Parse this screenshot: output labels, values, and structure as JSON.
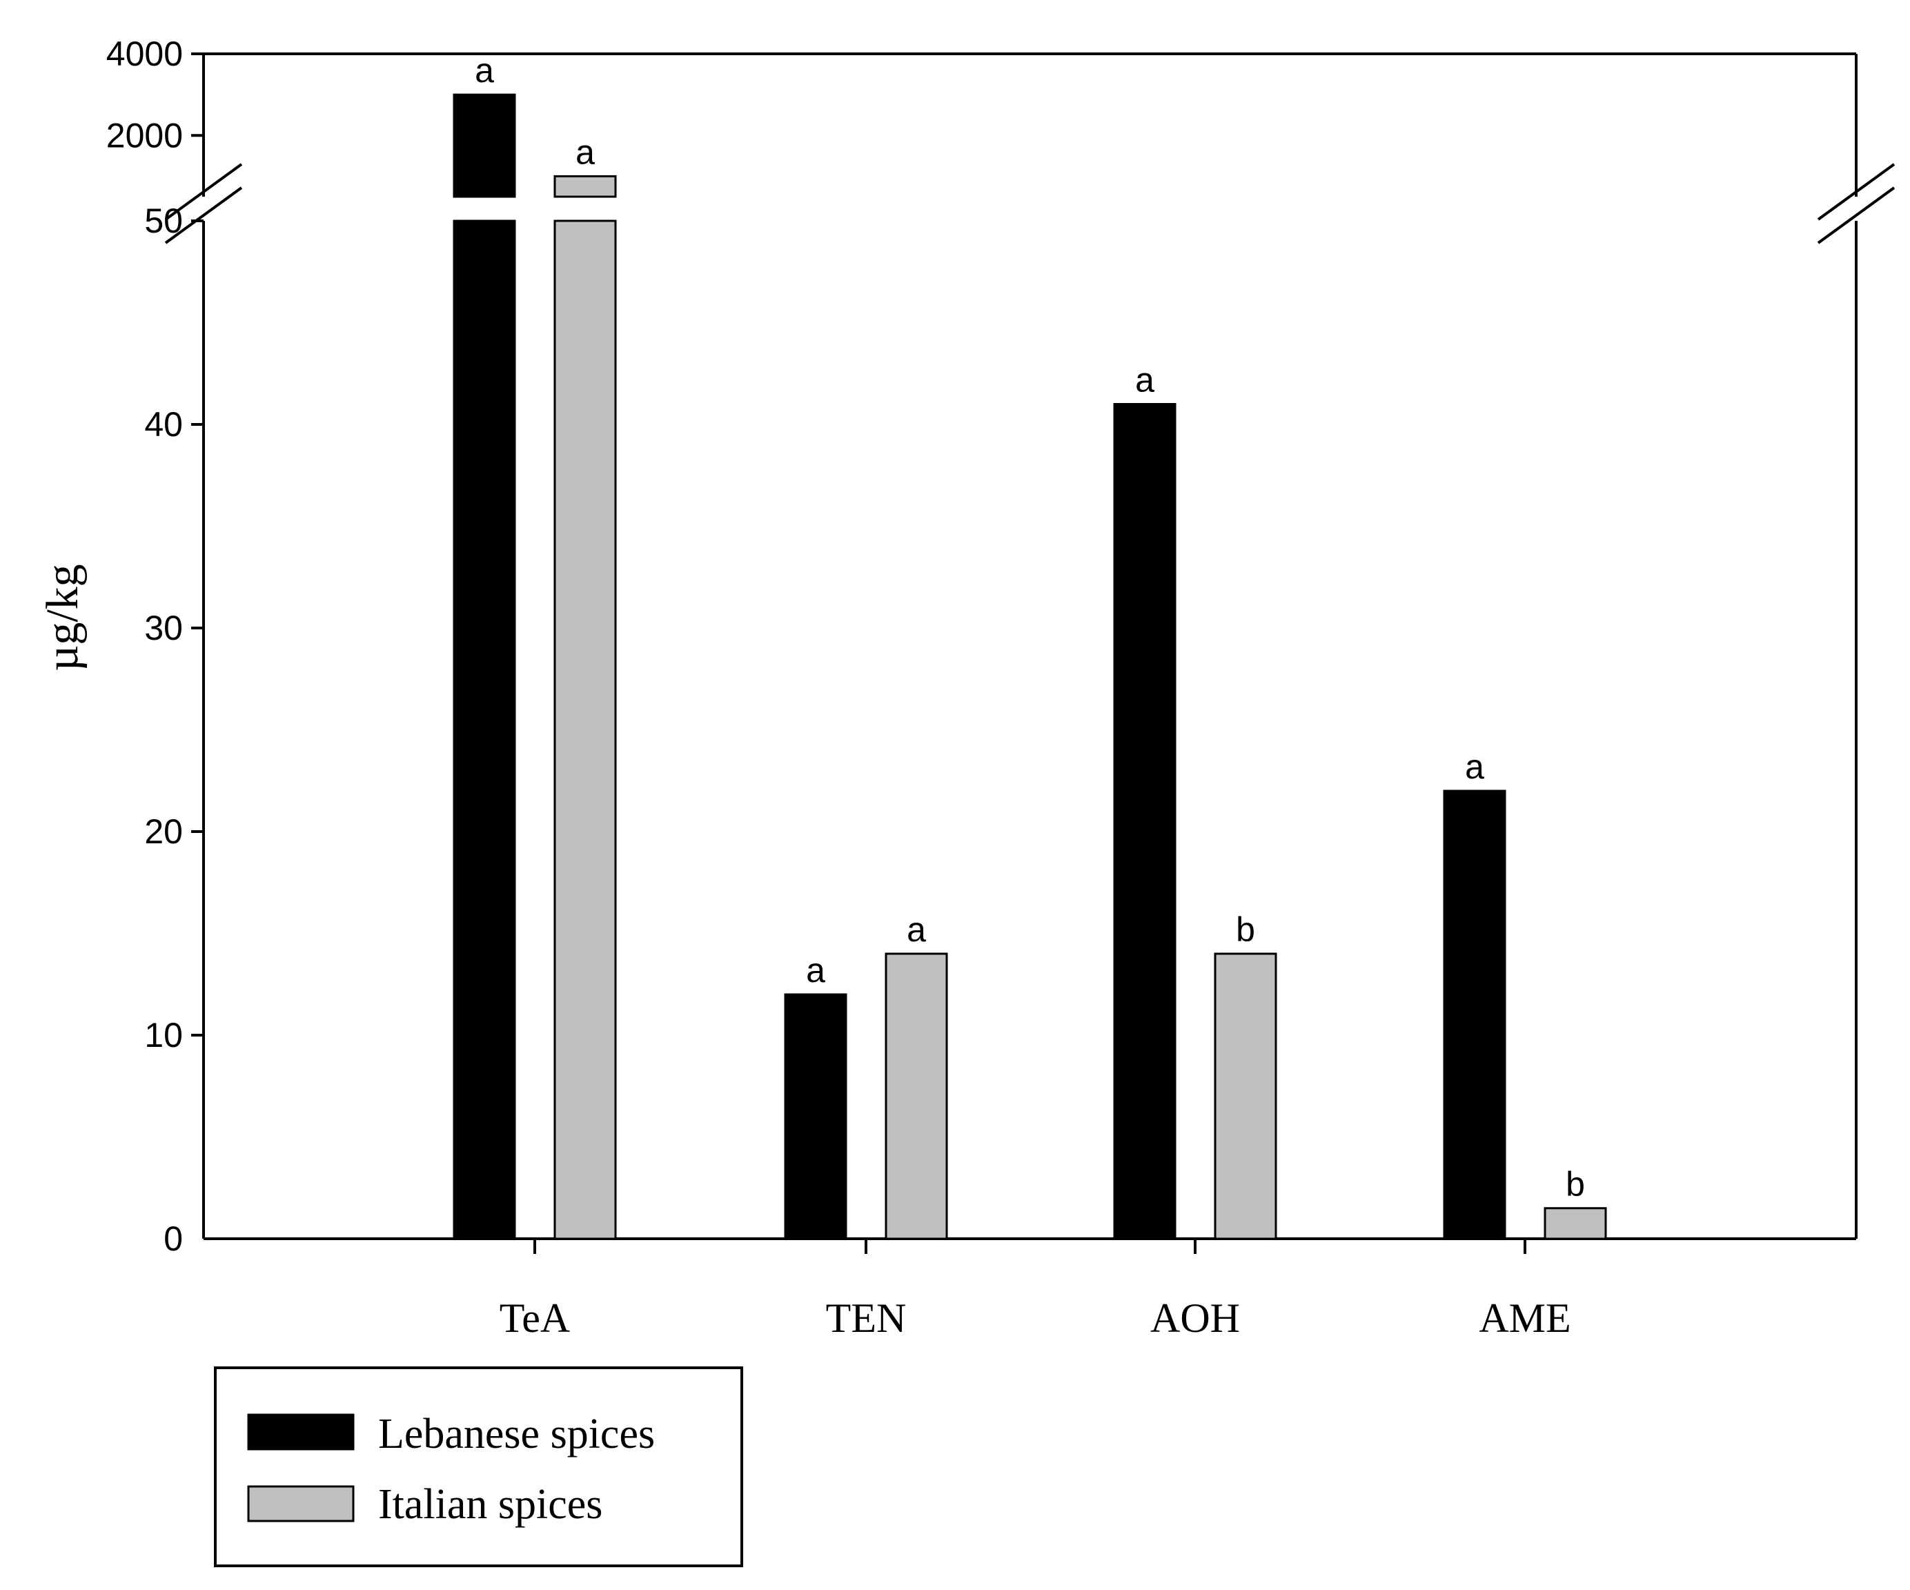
{
  "chart_data": {
    "type": "bar",
    "title": "",
    "xlabel": "",
    "ylabel": "µg/kg",
    "categories": [
      "TeA",
      "TEN",
      "AOH",
      "AME"
    ],
    "series": [
      {
        "name": "Lebanese spices",
        "color": "#000000",
        "values": [
          3000,
          12,
          41,
          22
        ],
        "labels": [
          "a",
          "a",
          "a",
          "a"
        ]
      },
      {
        "name": "Italian spices",
        "color": "#c0c0c0",
        "values": [
          1000,
          14,
          14,
          1.5
        ],
        "labels": [
          "a",
          "a",
          "b",
          "b"
        ]
      }
    ],
    "axis_lower": {
      "range": [
        0,
        50
      ],
      "ticks": [
        "0",
        "10",
        "20",
        "30",
        "40",
        "50"
      ]
    },
    "axis_upper": {
      "range": [
        500,
        4000
      ],
      "ticks": [
        "2000",
        "4000"
      ]
    },
    "axis_break": true,
    "legend_position": "bottom-left",
    "grid": false
  }
}
